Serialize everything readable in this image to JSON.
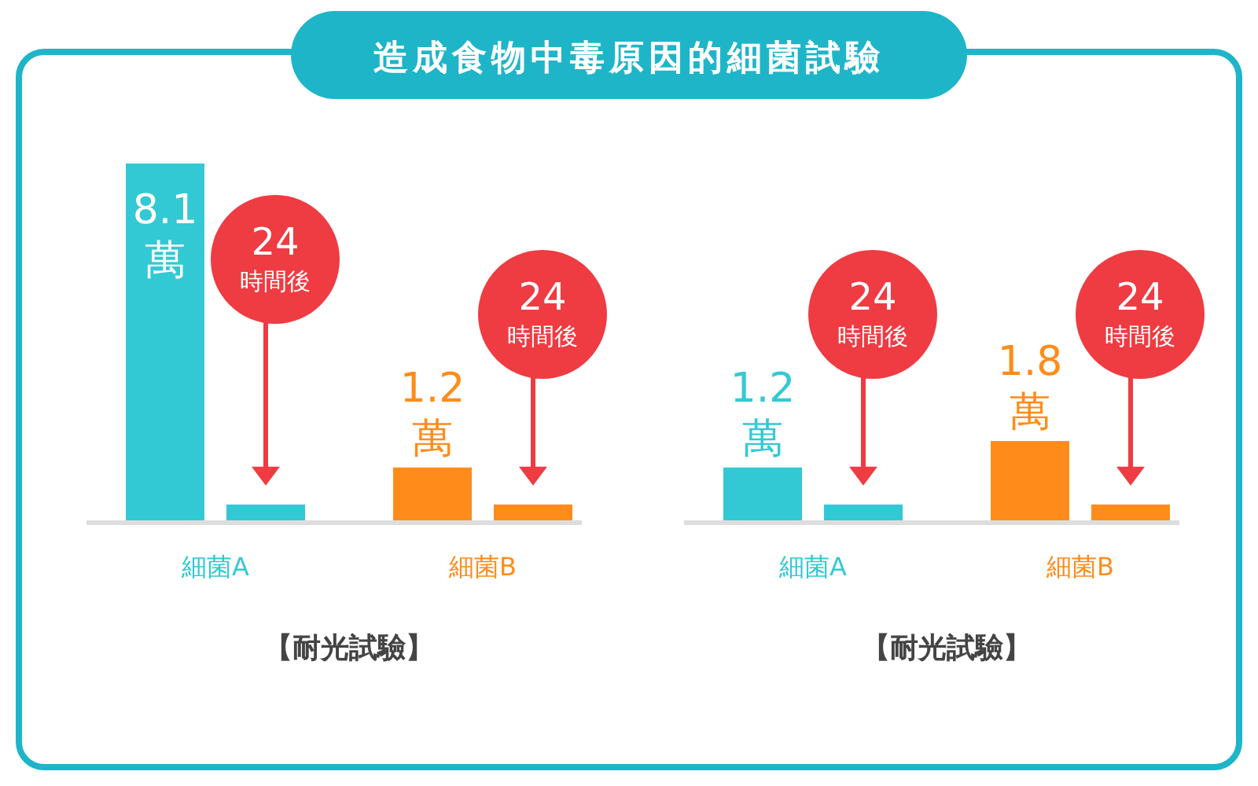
{
  "chart_data": [
    {
      "type": "bar",
      "title": "造成食物中毒原因的細菌試驗",
      "xlabel": "【耐光試驗】",
      "categories": [
        "細菌A",
        "細菌B"
      ],
      "series": [
        {
          "colors": [
            "#33c9d4",
            "#ff8c1a"
          ],
          "values": [
            8.1,
            1.2
          ],
          "value_labels": [
            "8.1萬",
            "1.2萬"
          ]
        },
        {
          "colors": [
            "#33c9d4",
            "#ff8c1a"
          ],
          "values": [
            0.36,
            0.36
          ]
        }
      ],
      "annotations": [
        "24 時間後",
        "24 時間後"
      ]
    },
    {
      "type": "bar",
      "xlabel": "【耐光試驗】",
      "categories": [
        "細菌A",
        "細菌B"
      ],
      "series": [
        {
          "colors": [
            "#33c9d4",
            "#ff8c1a"
          ],
          "values": [
            1.2,
            1.8
          ],
          "value_labels": [
            "1.2萬",
            "1.8萬"
          ]
        },
        {
          "colors": [
            "#33c9d4",
            "#ff8c1a"
          ],
          "values": [
            0.36,
            0.36
          ]
        }
      ],
      "annotations": [
        "24 時間後",
        "24 時間後"
      ]
    }
  ]
}
